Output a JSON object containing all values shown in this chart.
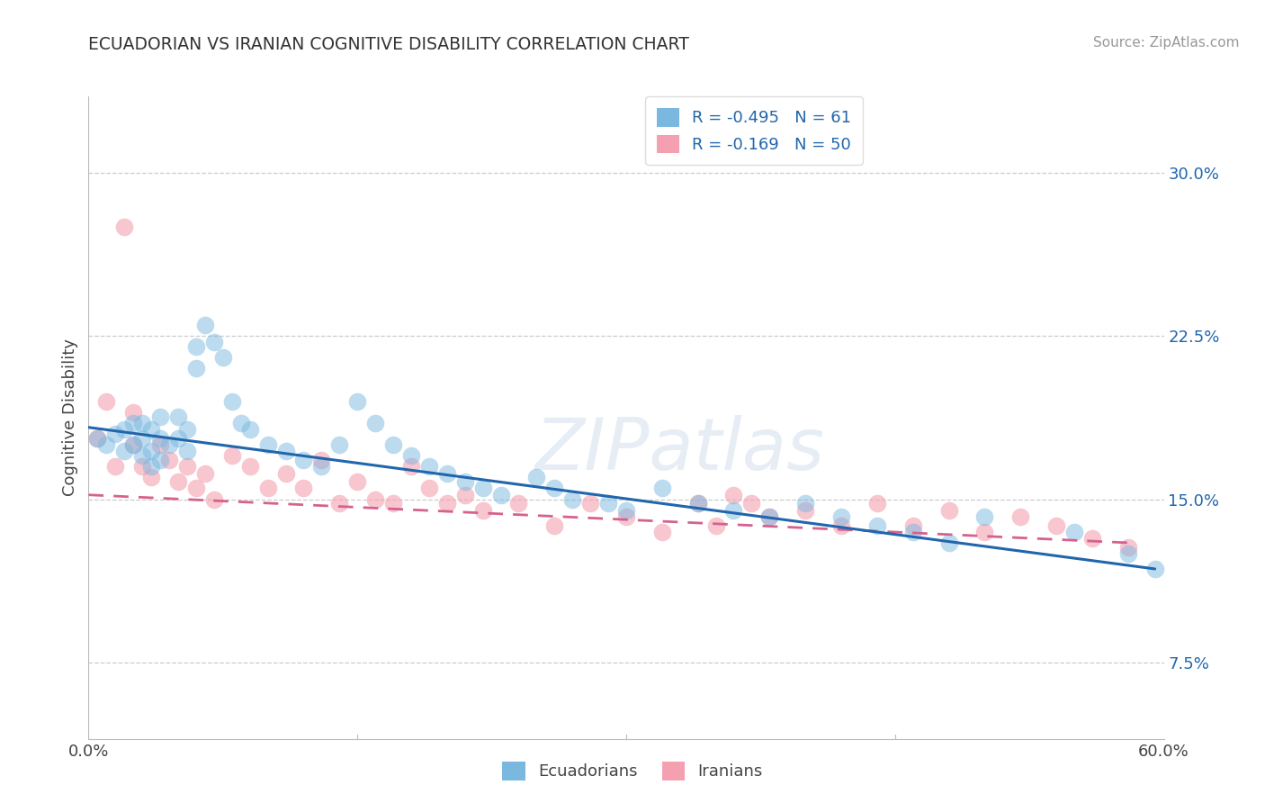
{
  "title": "ECUADORIAN VS IRANIAN COGNITIVE DISABILITY CORRELATION CHART",
  "source": "Source: ZipAtlas.com",
  "ylabel": "Cognitive Disability",
  "xlim": [
    0.0,
    0.6
  ],
  "ylim": [
    0.04,
    0.335
  ],
  "yticks": [
    0.075,
    0.15,
    0.225,
    0.3
  ],
  "ytick_labels": [
    "7.5%",
    "15.0%",
    "22.5%",
    "30.0%"
  ],
  "xticks": [
    0.0,
    0.6
  ],
  "xtick_labels": [
    "0.0%",
    "60.0%"
  ],
  "legend_R_blue": "-0.495",
  "legend_N_blue": "61",
  "legend_R_pink": "-0.169",
  "legend_N_pink": "50",
  "blue_color": "#7ab8e0",
  "pink_color": "#f4a0b0",
  "blue_line_color": "#2166ac",
  "pink_line_color": "#d6618f",
  "ecuadorians_x": [
    0.005,
    0.01,
    0.015,
    0.02,
    0.02,
    0.025,
    0.025,
    0.03,
    0.03,
    0.03,
    0.035,
    0.035,
    0.035,
    0.04,
    0.04,
    0.04,
    0.045,
    0.05,
    0.05,
    0.055,
    0.055,
    0.06,
    0.06,
    0.065,
    0.07,
    0.075,
    0.08,
    0.085,
    0.09,
    0.1,
    0.11,
    0.12,
    0.13,
    0.14,
    0.15,
    0.16,
    0.17,
    0.18,
    0.19,
    0.2,
    0.21,
    0.22,
    0.23,
    0.25,
    0.26,
    0.27,
    0.29,
    0.3,
    0.32,
    0.34,
    0.36,
    0.38,
    0.4,
    0.42,
    0.44,
    0.46,
    0.48,
    0.5,
    0.55,
    0.58,
    0.595
  ],
  "ecuadorians_y": [
    0.178,
    0.175,
    0.18,
    0.182,
    0.172,
    0.185,
    0.175,
    0.185,
    0.178,
    0.17,
    0.182,
    0.172,
    0.165,
    0.188,
    0.178,
    0.168,
    0.175,
    0.188,
    0.178,
    0.182,
    0.172,
    0.22,
    0.21,
    0.23,
    0.222,
    0.215,
    0.195,
    0.185,
    0.182,
    0.175,
    0.172,
    0.168,
    0.165,
    0.175,
    0.195,
    0.185,
    0.175,
    0.17,
    0.165,
    0.162,
    0.158,
    0.155,
    0.152,
    0.16,
    0.155,
    0.15,
    0.148,
    0.145,
    0.155,
    0.148,
    0.145,
    0.142,
    0.148,
    0.142,
    0.138,
    0.135,
    0.13,
    0.142,
    0.135,
    0.125,
    0.118
  ],
  "iranians_x": [
    0.005,
    0.01,
    0.015,
    0.02,
    0.025,
    0.025,
    0.03,
    0.035,
    0.04,
    0.045,
    0.05,
    0.055,
    0.06,
    0.065,
    0.07,
    0.08,
    0.09,
    0.1,
    0.11,
    0.12,
    0.13,
    0.14,
    0.15,
    0.16,
    0.17,
    0.18,
    0.19,
    0.2,
    0.21,
    0.22,
    0.24,
    0.26,
    0.28,
    0.3,
    0.32,
    0.34,
    0.35,
    0.36,
    0.37,
    0.38,
    0.4,
    0.42,
    0.44,
    0.46,
    0.48,
    0.5,
    0.52,
    0.54,
    0.56,
    0.58
  ],
  "iranians_y": [
    0.178,
    0.195,
    0.165,
    0.275,
    0.19,
    0.175,
    0.165,
    0.16,
    0.175,
    0.168,
    0.158,
    0.165,
    0.155,
    0.162,
    0.15,
    0.17,
    0.165,
    0.155,
    0.162,
    0.155,
    0.168,
    0.148,
    0.158,
    0.15,
    0.148,
    0.165,
    0.155,
    0.148,
    0.152,
    0.145,
    0.148,
    0.138,
    0.148,
    0.142,
    0.135,
    0.148,
    0.138,
    0.152,
    0.148,
    0.142,
    0.145,
    0.138,
    0.148,
    0.138,
    0.145,
    0.135,
    0.142,
    0.138,
    0.132,
    0.128
  ],
  "blue_line_start_y": 0.183,
  "blue_line_end_y": 0.118,
  "pink_line_start_y": 0.152,
  "pink_line_end_y": 0.13
}
